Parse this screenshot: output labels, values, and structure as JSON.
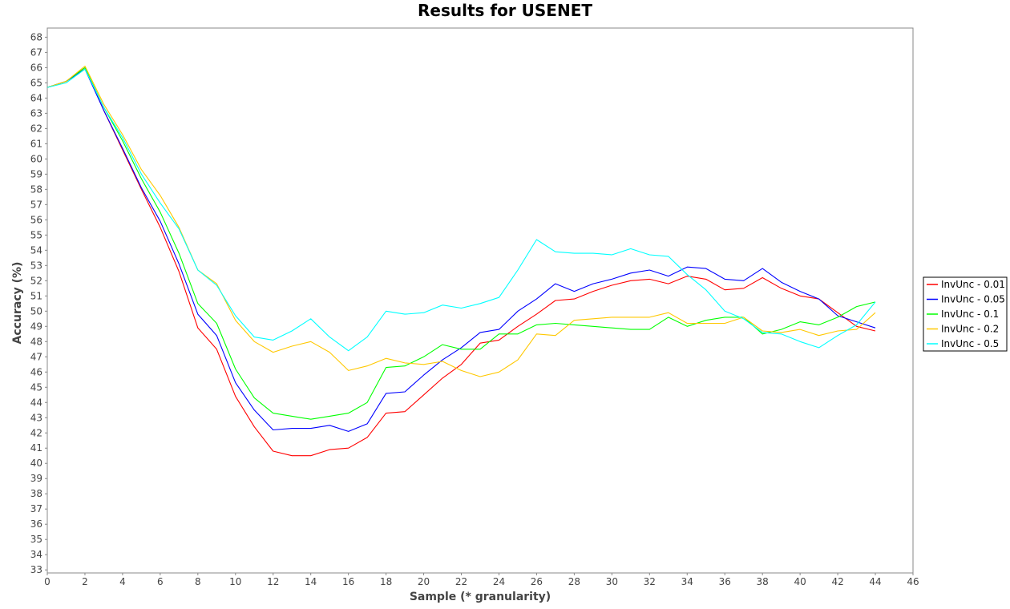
{
  "chart_data": {
    "type": "line",
    "title": "Results for USENET",
    "xlabel": "Sample (* granularity)",
    "ylabel": "Accuracy (%)",
    "xlim": [
      0,
      46
    ],
    "ylim": [
      32.8,
      68.6
    ],
    "x_ticks": [
      0,
      2,
      4,
      6,
      8,
      10,
      12,
      14,
      16,
      18,
      20,
      22,
      24,
      26,
      28,
      30,
      32,
      34,
      36,
      38,
      40,
      42,
      44,
      46
    ],
    "y_ticks": [
      33,
      34,
      35,
      36,
      37,
      38,
      39,
      40,
      41,
      42,
      43,
      44,
      45,
      46,
      47,
      48,
      49,
      50,
      51,
      52,
      53,
      54,
      55,
      56,
      57,
      58,
      59,
      60,
      61,
      62,
      63,
      64,
      65,
      66,
      67,
      68
    ],
    "grid": false,
    "legend_position": "right",
    "x": [
      0,
      1,
      2,
      3,
      4,
      5,
      6,
      7,
      8,
      9,
      10,
      11,
      12,
      13,
      14,
      15,
      16,
      17,
      18,
      19,
      20,
      21,
      22,
      23,
      24,
      25,
      26,
      27,
      28,
      29,
      30,
      31,
      32,
      33,
      34,
      35,
      36,
      37,
      38,
      39,
      40,
      41,
      42,
      43,
      44
    ],
    "series": [
      {
        "name": "InvUnc - 0.01",
        "color": "#ff0000",
        "values": [
          64.7,
          65.1,
          66.0,
          63.2,
          60.6,
          58.0,
          55.5,
          52.6,
          48.9,
          47.5,
          44.4,
          42.4,
          40.8,
          40.5,
          40.5,
          40.9,
          41.0,
          41.7,
          43.3,
          43.4,
          44.5,
          45.6,
          46.5,
          47.9,
          48.1,
          49.0,
          49.8,
          50.7,
          50.8,
          51.3,
          51.7,
          52.0,
          52.1,
          51.8,
          52.3,
          52.1,
          51.4,
          51.5,
          52.2,
          51.5,
          51.0,
          50.8,
          49.9,
          49.0,
          48.7
        ]
      },
      {
        "name": "InvUnc - 0.05",
        "color": "#0000ff",
        "values": [
          64.7,
          65.1,
          65.9,
          63.2,
          60.7,
          58.1,
          55.9,
          53.1,
          49.8,
          48.4,
          45.3,
          43.5,
          42.2,
          42.3,
          42.3,
          42.5,
          42.1,
          42.6,
          44.6,
          44.7,
          45.8,
          46.8,
          47.6,
          48.6,
          48.8,
          50.0,
          50.8,
          51.8,
          51.3,
          51.8,
          52.1,
          52.5,
          52.7,
          52.3,
          52.9,
          52.8,
          52.1,
          52.0,
          52.8,
          51.9,
          51.3,
          50.8,
          49.7,
          49.3,
          48.9
        ]
      },
      {
        "name": "InvUnc - 0.1",
        "color": "#00ff00",
        "values": [
          64.7,
          65.1,
          66.0,
          63.4,
          61.2,
          58.7,
          56.5,
          53.8,
          50.5,
          49.2,
          46.2,
          44.3,
          43.3,
          43.1,
          42.9,
          43.1,
          43.3,
          44.0,
          46.3,
          46.4,
          47.0,
          47.8,
          47.5,
          47.5,
          48.5,
          48.5,
          49.1,
          49.2,
          49.1,
          49.0,
          48.9,
          48.8,
          48.8,
          49.6,
          49.0,
          49.4,
          49.6,
          49.6,
          48.5,
          48.8,
          49.3,
          49.1,
          49.6,
          50.3,
          50.6
        ]
      },
      {
        "name": "InvUnc - 0.2",
        "color": "#ffc800",
        "values": [
          64.7,
          65.1,
          66.1,
          63.6,
          61.6,
          59.3,
          57.6,
          55.5,
          52.7,
          51.8,
          49.4,
          48.0,
          47.3,
          47.7,
          48.0,
          47.3,
          46.1,
          46.4,
          46.9,
          46.6,
          46.5,
          46.7,
          46.1,
          45.7,
          46.0,
          46.8,
          48.5,
          48.4,
          49.4,
          49.5,
          49.6,
          49.6,
          49.6,
          49.9,
          49.2,
          49.2,
          49.2,
          49.6,
          48.7,
          48.6,
          48.8,
          48.4,
          48.7,
          48.8,
          49.9
        ]
      },
      {
        "name": "InvUnc - 0.5",
        "color": "#00ffff",
        "values": [
          64.7,
          65.0,
          65.9,
          63.4,
          61.4,
          59.0,
          57.1,
          55.4,
          52.7,
          51.7,
          49.7,
          48.3,
          48.1,
          48.7,
          49.5,
          48.3,
          47.4,
          48.3,
          50.0,
          49.8,
          49.9,
          50.4,
          50.2,
          50.5,
          50.9,
          52.7,
          54.7,
          53.9,
          53.8,
          53.8,
          53.7,
          54.1,
          53.7,
          53.6,
          52.4,
          51.4,
          50.0,
          49.5,
          48.6,
          48.5,
          48.0,
          47.6,
          48.4,
          49.1,
          50.6
        ]
      }
    ]
  }
}
